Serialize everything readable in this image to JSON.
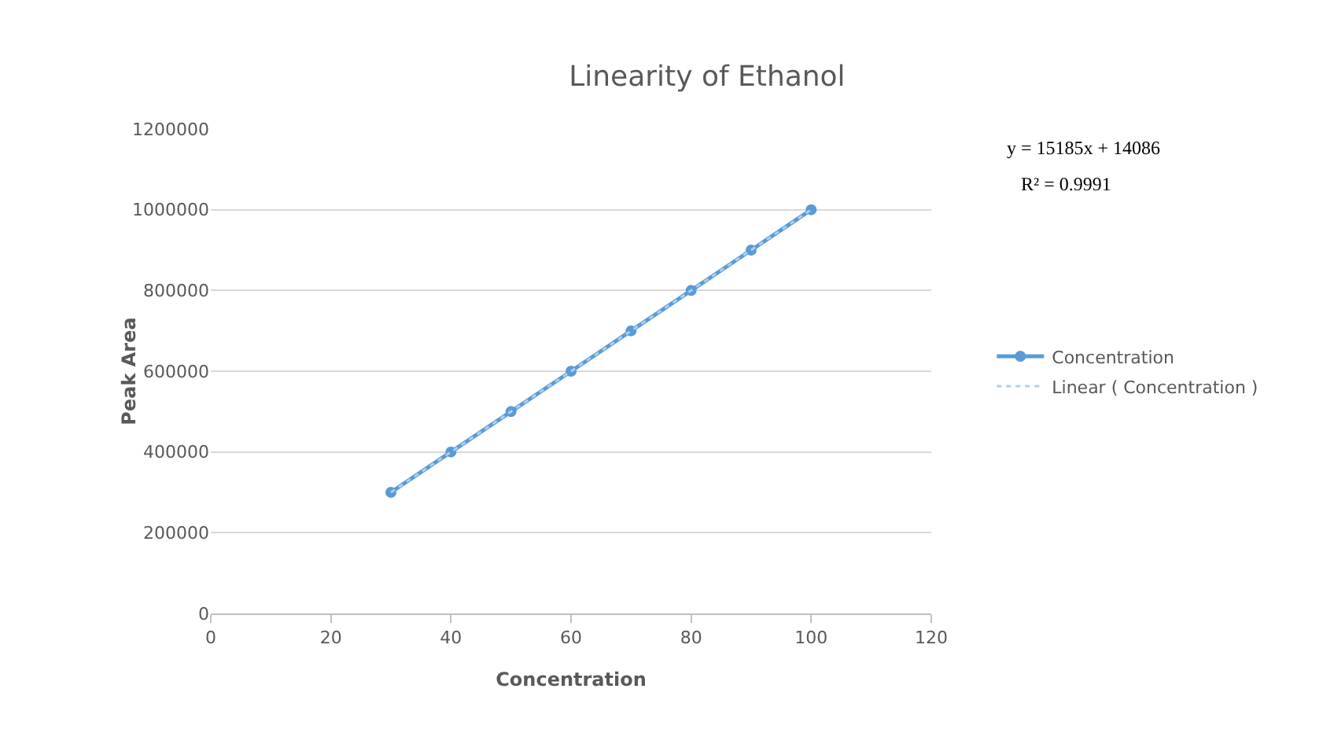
{
  "chart_data": {
    "type": "line",
    "title": "Linearity of Ethanol",
    "xlabel": "Concentration",
    "ylabel": "Peak Area",
    "x": [
      30,
      40,
      50,
      60,
      70,
      80,
      90,
      100
    ],
    "series": [
      {
        "name": "Concentration",
        "color": "#5b9bd5",
        "values": [
          300000,
          400000,
          500000,
          600000,
          700000,
          800000,
          900000,
          1000000
        ],
        "marker": "circle",
        "line_style": "solid"
      },
      {
        "name": "Linear ( Concentration )",
        "color": "#a9d0f5",
        "type": "line",
        "x": [
          30,
          100
        ],
        "values": [
          300000,
          1000000
        ],
        "marker": "none",
        "line_style": "dotted"
      }
    ],
    "xlim": [
      0,
      120
    ],
    "xticks": [
      0,
      20,
      40,
      60,
      80,
      100,
      120
    ],
    "ylim": [
      0,
      1200000
    ],
    "yticks": [
      0,
      200000,
      400000,
      600000,
      800000,
      1000000,
      1200000
    ],
    "grid": "y",
    "legend": "right",
    "annotations": [
      "y = 15185x + 14086",
      "R² = 0.9991"
    ]
  }
}
